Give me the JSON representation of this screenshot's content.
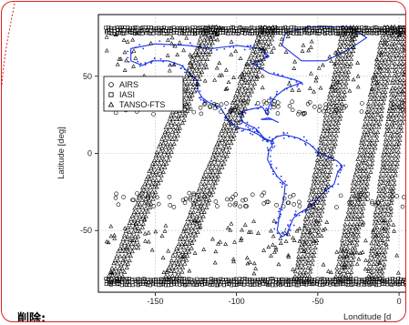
{
  "caption": "削除:",
  "colors": {
    "frame_border": "#e02020",
    "coastline": "#1a33e6",
    "markers": "#000000",
    "grid": "#b0b0b0"
  },
  "chart_data": {
    "type": "scatter",
    "xlabel": "Londitude [d",
    "ylabel": "Latitude [deg]",
    "xlim": [
      -185,
      5
    ],
    "ylim": [
      -90,
      90
    ],
    "x_ticks": [
      -150,
      -100,
      -50,
      0
    ],
    "y_ticks": [
      -50,
      0,
      50
    ],
    "grid": true,
    "legend_position": "top-left",
    "background_layer": "blue coastline map (Americas)",
    "series": [
      {
        "name": "AIRS",
        "marker": "circle",
        "bands": [
          {
            "lat_range": [
              -35,
              -25
            ],
            "lon_range": [
              -180,
              5
            ]
          },
          {
            "lat_range": [
              25,
              35
            ],
            "lon_range": [
              -180,
              5
            ]
          }
        ]
      },
      {
        "name": "IASI",
        "marker": "square",
        "bands": [
          {
            "lat_range": [
              78,
              83
            ],
            "lon_range": [
              -180,
              5
            ]
          },
          {
            "lat_range": [
              -85,
              -80
            ],
            "lon_range": [
              -180,
              5
            ]
          }
        ]
      },
      {
        "name": "TANSO-FTS",
        "marker": "triangle",
        "tracks": [
          {
            "lon_at_south": -175,
            "lon_at_north": -115
          },
          {
            "lon_at_south": -140,
            "lon_at_north": -80
          },
          {
            "lon_at_south": -60,
            "lon_at_north": -30
          },
          {
            "lon_at_south": -35,
            "lon_at_north": -5
          },
          {
            "lon_at_south": -15,
            "lon_at_north": 5
          }
        ]
      }
    ]
  }
}
